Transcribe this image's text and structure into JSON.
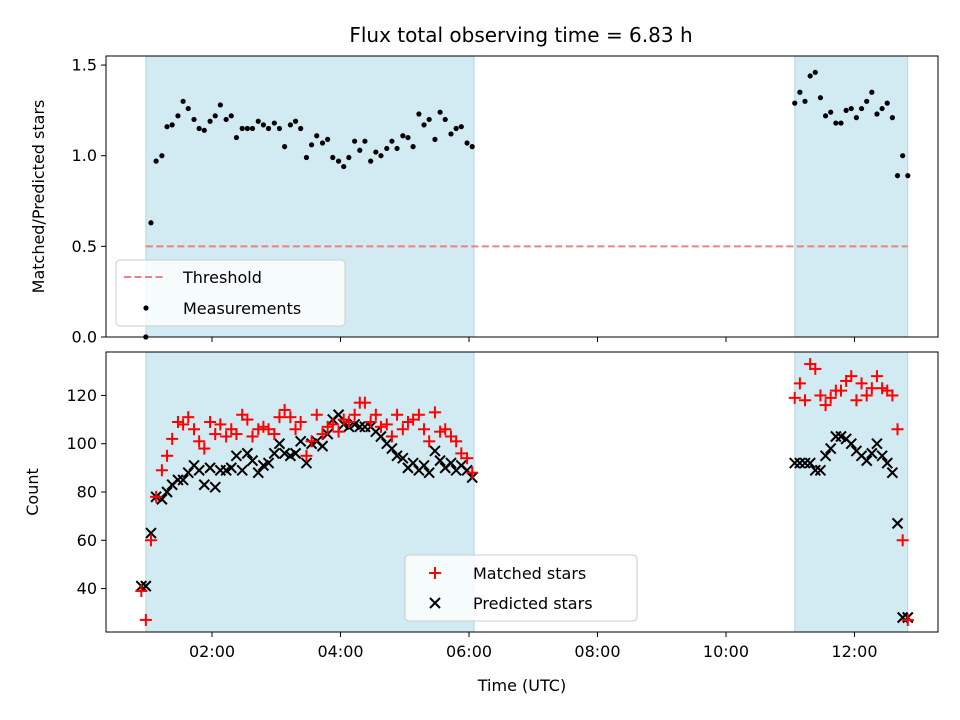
{
  "chart_data": [
    {
      "type": "scatter",
      "title": "Flux total observing time = 6.83 h",
      "xlabel": "",
      "ylabel": "Matched/Predicted stars",
      "ylim": [
        0,
        1.55
      ],
      "yticks": [
        "0.0",
        "0.5",
        "1.0",
        "1.5"
      ],
      "ytick_values": [
        0,
        0.5,
        1.0,
        1.5
      ],
      "xlim": [
        0.35,
        13.3
      ],
      "shaded_spans": [
        [
          0.97,
          6.08
        ],
        [
          11.07,
          12.83
        ]
      ],
      "shade_color": "#add8e6",
      "threshold": {
        "name": "Threshold",
        "value": 0.5,
        "x_range": [
          0.97,
          12.83
        ],
        "color": "#f08080"
      },
      "legend_position": "lower left",
      "series": [
        {
          "name": "Measurements",
          "color": "#000000",
          "x": [
            0.97,
            1.05,
            1.13,
            1.22,
            1.3,
            1.38,
            1.47,
            1.55,
            1.63,
            1.72,
            1.8,
            1.88,
            1.97,
            2.05,
            2.13,
            2.22,
            2.3,
            2.38,
            2.47,
            2.55,
            2.63,
            2.72,
            2.8,
            2.88,
            2.97,
            3.05,
            3.13,
            3.22,
            3.3,
            3.38,
            3.47,
            3.55,
            3.63,
            3.72,
            3.8,
            3.88,
            3.97,
            4.05,
            4.13,
            4.22,
            4.3,
            4.38,
            4.47,
            4.55,
            4.63,
            4.72,
            4.8,
            4.88,
            4.97,
            5.05,
            5.13,
            5.22,
            5.3,
            5.38,
            5.47,
            5.55,
            5.63,
            5.72,
            5.8,
            5.88,
            5.97,
            6.05,
            11.07,
            11.15,
            11.23,
            11.31,
            11.39,
            11.47,
            11.55,
            11.63,
            11.71,
            11.79,
            11.87,
            11.95,
            12.03,
            12.11,
            12.19,
            12.27,
            12.35,
            12.43,
            12.51,
            12.59,
            12.67,
            12.75,
            12.83
          ],
          "values": [
            0.0,
            0.63,
            0.97,
            1.0,
            1.16,
            1.17,
            1.22,
            1.3,
            1.26,
            1.2,
            1.15,
            1.14,
            1.19,
            1.22,
            1.28,
            1.2,
            1.22,
            1.1,
            1.15,
            1.15,
            1.15,
            1.19,
            1.17,
            1.15,
            1.18,
            1.15,
            1.05,
            1.17,
            1.19,
            1.15,
            0.99,
            1.06,
            1.11,
            1.07,
            1.09,
            0.99,
            0.97,
            0.94,
            0.99,
            1.08,
            1.03,
            1.08,
            0.97,
            1.02,
            1.0,
            1.04,
            1.08,
            1.04,
            1.11,
            1.1,
            1.05,
            1.23,
            1.17,
            1.2,
            1.09,
            1.24,
            1.2,
            1.12,
            1.15,
            1.16,
            1.07,
            1.05,
            1.29,
            1.35,
            1.3,
            1.44,
            1.46,
            1.32,
            1.22,
            1.24,
            1.18,
            1.18,
            1.25,
            1.26,
            1.21,
            1.26,
            1.3,
            1.35,
            1.23,
            1.26,
            1.29,
            1.21,
            0.89,
            1.0,
            0.89
          ]
        }
      ]
    },
    {
      "type": "scatter",
      "title": "",
      "xlabel": "Time (UTC)",
      "ylabel": "Count",
      "ylim": [
        22,
        138
      ],
      "yticks": [
        "40",
        "60",
        "80",
        "100",
        "120"
      ],
      "ytick_values": [
        40,
        60,
        80,
        100,
        120
      ],
      "xlim": [
        0.35,
        13.3
      ],
      "xticks": [
        "02:00",
        "04:00",
        "06:00",
        "08:00",
        "10:00",
        "12:00"
      ],
      "xtick_values": [
        2,
        4,
        6,
        8,
        10,
        12
      ],
      "shaded_spans": [
        [
          0.97,
          6.08
        ],
        [
          11.07,
          12.83
        ]
      ],
      "shade_color": "#add8e6",
      "legend_position": "lower center",
      "series": [
        {
          "name": "Matched stars",
          "color": "#ff0000",
          "marker": "+",
          "x": [
            0.97,
            1.05,
            1.13,
            1.22,
            1.3,
            1.38,
            1.47,
            1.55,
            1.63,
            1.72,
            1.8,
            1.88,
            1.97,
            2.05,
            2.13,
            2.22,
            2.3,
            2.38,
            2.47,
            2.55,
            2.63,
            2.72,
            2.8,
            2.88,
            2.97,
            3.05,
            3.13,
            3.22,
            3.3,
            3.38,
            3.47,
            3.55,
            3.63,
            3.72,
            3.8,
            3.88,
            3.97,
            4.05,
            4.13,
            4.22,
            4.3,
            4.38,
            4.47,
            4.55,
            4.63,
            4.72,
            4.8,
            4.88,
            4.97,
            5.05,
            5.13,
            5.22,
            5.3,
            5.38,
            5.47,
            5.55,
            5.63,
            5.72,
            5.8,
            5.88,
            5.97,
            6.05,
            0.9,
            11.07,
            11.15,
            11.23,
            11.31,
            11.39,
            11.47,
            11.55,
            11.63,
            11.71,
            11.79,
            11.87,
            11.95,
            12.03,
            12.11,
            12.19,
            12.27,
            12.35,
            12.43,
            12.51,
            12.59,
            12.67,
            12.75,
            12.83
          ],
          "values": [
            27,
            60,
            78,
            89,
            95,
            102,
            109,
            108,
            111,
            106,
            101,
            98,
            109,
            104,
            108,
            103,
            106,
            104,
            112,
            110,
            103,
            106,
            107,
            106,
            104,
            111,
            114,
            111,
            106,
            109,
            95,
            101,
            112,
            104,
            107,
            108,
            105,
            110,
            109,
            112,
            117,
            117,
            109,
            112,
            107,
            108,
            103,
            112,
            106,
            109,
            110,
            112,
            106,
            101,
            113,
            105,
            106,
            103,
            101,
            96,
            94,
            88,
            39,
            119,
            125,
            118,
            133,
            131,
            120,
            116,
            119,
            122,
            122,
            126,
            128,
            118,
            125,
            120,
            123,
            128,
            123,
            122,
            120,
            106,
            60,
            27
          ],
          "x_sorted_note": ""
        },
        {
          "name": "Predicted stars",
          "color": "#000000",
          "marker": "x",
          "x": [
            0.9,
            0.97,
            1.05,
            1.13,
            1.22,
            1.3,
            1.38,
            1.47,
            1.55,
            1.63,
            1.72,
            1.8,
            1.88,
            1.97,
            2.05,
            2.13,
            2.22,
            2.3,
            2.38,
            2.47,
            2.55,
            2.63,
            2.72,
            2.8,
            2.88,
            2.97,
            3.05,
            3.13,
            3.22,
            3.3,
            3.38,
            3.47,
            3.55,
            3.63,
            3.72,
            3.8,
            3.88,
            3.97,
            4.05,
            4.13,
            4.22,
            4.3,
            4.38,
            4.47,
            4.55,
            4.63,
            4.72,
            4.8,
            4.88,
            4.97,
            5.05,
            5.13,
            5.22,
            5.3,
            5.38,
            5.47,
            5.55,
            5.63,
            5.72,
            5.8,
            5.88,
            5.97,
            6.05,
            11.07,
            11.15,
            11.23,
            11.31,
            11.39,
            11.47,
            11.55,
            11.63,
            11.71,
            11.79,
            11.87,
            11.95,
            12.03,
            12.11,
            12.19,
            12.27,
            12.35,
            12.43,
            12.51,
            12.59,
            12.67,
            12.75,
            12.83
          ],
          "values": [
            41,
            41,
            63,
            78,
            77,
            80,
            83,
            85,
            85,
            88,
            91,
            89,
            83,
            90,
            82,
            89,
            89,
            90,
            95,
            89,
            96,
            93,
            88,
            91,
            92,
            96,
            100,
            96,
            95,
            96,
            101,
            92,
            100,
            101,
            99,
            104,
            110,
            112,
            108,
            107,
            108,
            107,
            107,
            107,
            105,
            103,
            100,
            98,
            95,
            94,
            90,
            92,
            89,
            91,
            88,
            97,
            93,
            90,
            92,
            89,
            91,
            89,
            86,
            92,
            92,
            92,
            92,
            89,
            89,
            95,
            98,
            103,
            103,
            102,
            100,
            97,
            95,
            93,
            96,
            100,
            95,
            92,
            88,
            67,
            28,
            28
          ]
        }
      ]
    }
  ]
}
